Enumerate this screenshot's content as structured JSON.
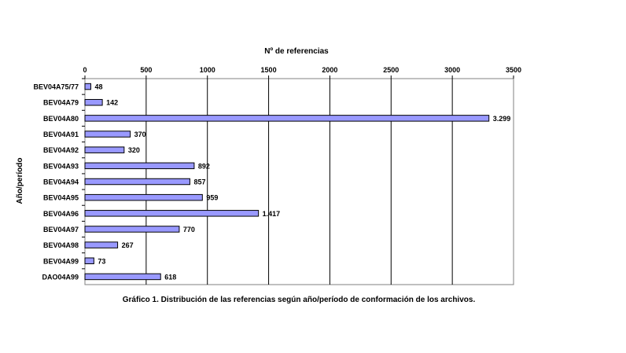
{
  "chart_data": {
    "type": "bar",
    "orientation": "horizontal",
    "x_axis_position": "top",
    "xlabel": "Nº de referencias",
    "ylabel": "Año/período",
    "caption": "Gráfico 1.  Distribución de las referencias según año/período de conformación de los archivos.",
    "xlim": [
      0,
      3500
    ],
    "x_ticks": [
      "0",
      "500",
      "1000",
      "1500",
      "2000",
      "2500",
      "3000",
      "3500"
    ],
    "grid": "vertical",
    "legend": "none",
    "bar_color": "#9999ff",
    "categories": [
      "BEV04A75/77",
      "BEV04A79",
      "BEV04A80",
      "BEV04A91",
      "BEV04A92",
      "BEV04A93",
      "BEV04A94",
      "BEV04A95",
      "BEV04A96",
      "BEV04A97",
      "BEV04A98",
      "BEV04A99",
      "DAO04A99"
    ],
    "values": [
      48,
      142,
      3299,
      370,
      320,
      892,
      857,
      959,
      1417,
      770,
      267,
      73,
      618
    ],
    "data_labels": [
      "48",
      "142",
      "3.299",
      "370",
      "320",
      "892",
      "857",
      "959",
      "1.417",
      "770",
      "267",
      "73",
      "618"
    ]
  }
}
